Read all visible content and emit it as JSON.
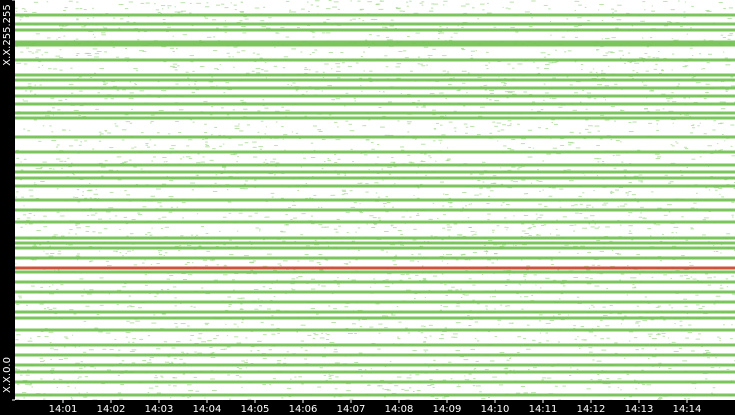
{
  "chart_data": {
    "type": "strip",
    "categories": [
      "14:01",
      "14:02",
      "14:03",
      "14:04",
      "14:05",
      "14:06",
      "14:07",
      "14:08",
      "14:09",
      "14:10",
      "14:11",
      "14:12",
      "14:13",
      "14:14"
    ],
    "ylim": [
      0,
      65535
    ],
    "yticks": [
      {
        "value": 0,
        "label": "X.X.0.0"
      },
      {
        "value": 65535,
        "label": "X.X.255.255"
      }
    ],
    "series": [
      {
        "color": "#6dbf4b",
        "values": [
          63078,
          61604,
          60621,
          58655,
          58163,
          55706,
          53248,
          52429,
          51118,
          49807,
          48497,
          47022,
          46203,
          43090,
          40632,
          38502,
          37356,
          36372,
          35062,
          32768,
          31130,
          29164,
          26542,
          25723,
          24904,
          23265,
          20972,
          19333,
          17695,
          16056,
          14418,
          13435,
          11469,
          9011,
          7373,
          5734,
          4588,
          2949,
          819
        ]
      },
      {
        "color": "#c8402a",
        "values": [
          21627
        ]
      }
    ]
  }
}
